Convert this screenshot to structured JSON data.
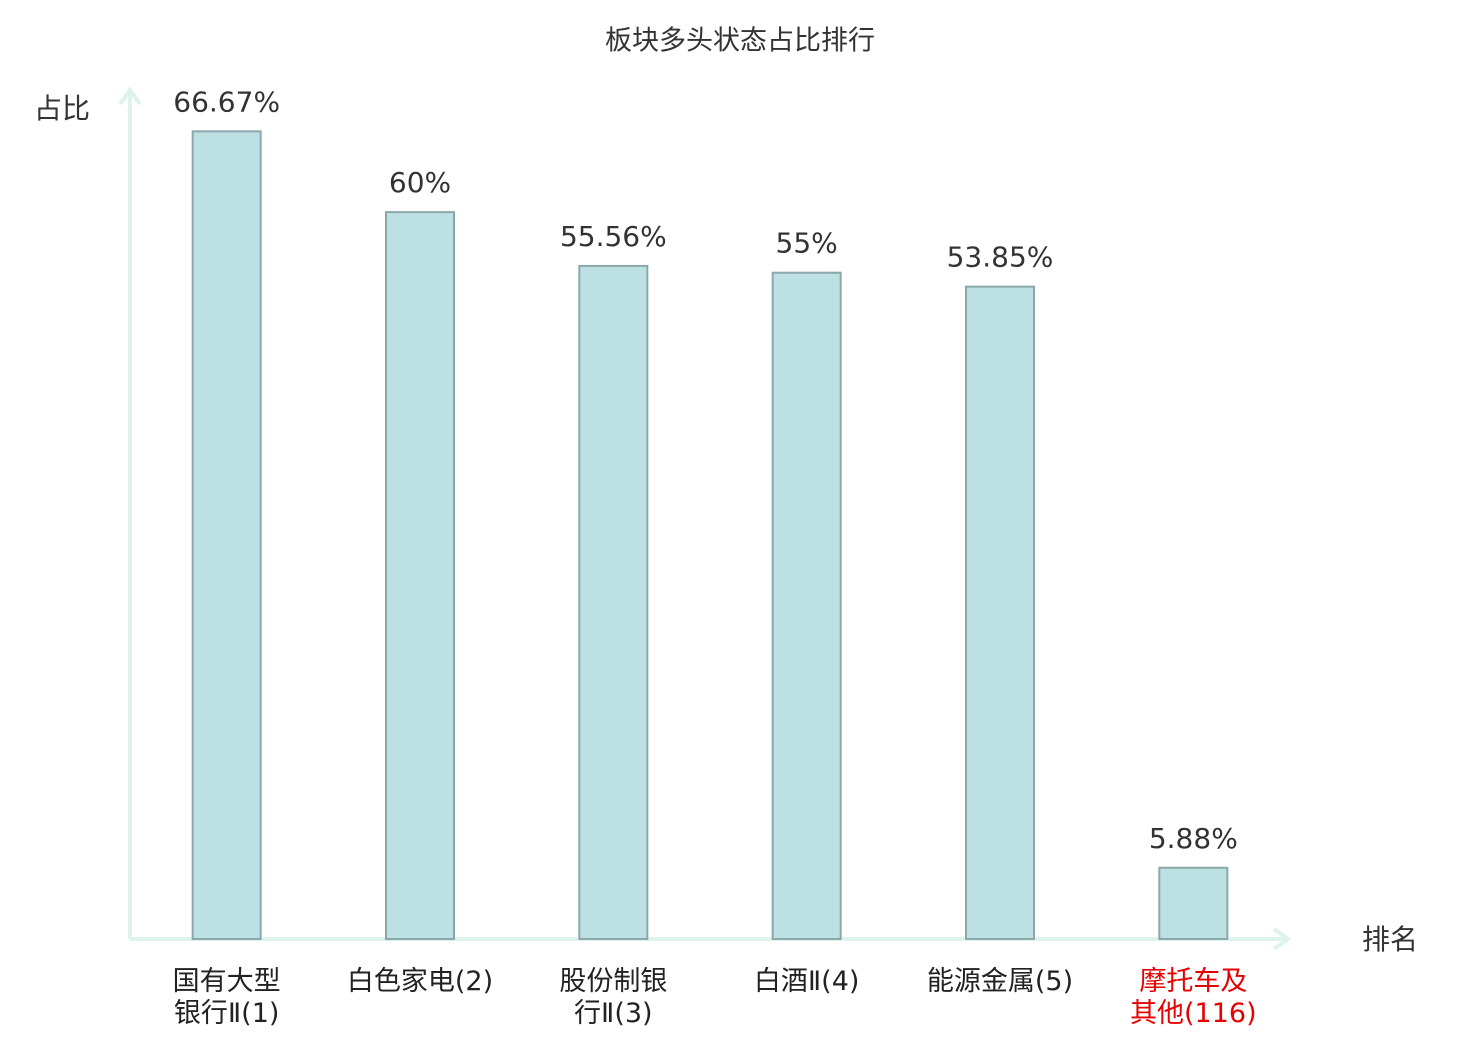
{
  "chart_data": {
    "type": "bar",
    "title": "板块多头状态占比排行",
    "y_label": "占比",
    "x_label": "排名",
    "categories": [
      "国有大型\n银行Ⅱ(1)",
      "白色家电(2)",
      "股份制银\n行Ⅱ(3)",
      "白酒Ⅱ(4)",
      "能源金属(5)",
      "摩托车及\n其他(116)"
    ],
    "label_colors": [
      "#222222",
      "#222222",
      "#222222",
      "#222222",
      "#222222",
      "#e60000"
    ],
    "values": [
      66.67,
      60,
      55.56,
      55,
      53.85,
      5.88
    ],
    "value_labels": [
      "66.67%",
      "60%",
      "55.56%",
      "55%",
      "53.85%",
      "5.88%"
    ],
    "color": "#bde0e3",
    "ylim": [
      0,
      70
    ]
  }
}
